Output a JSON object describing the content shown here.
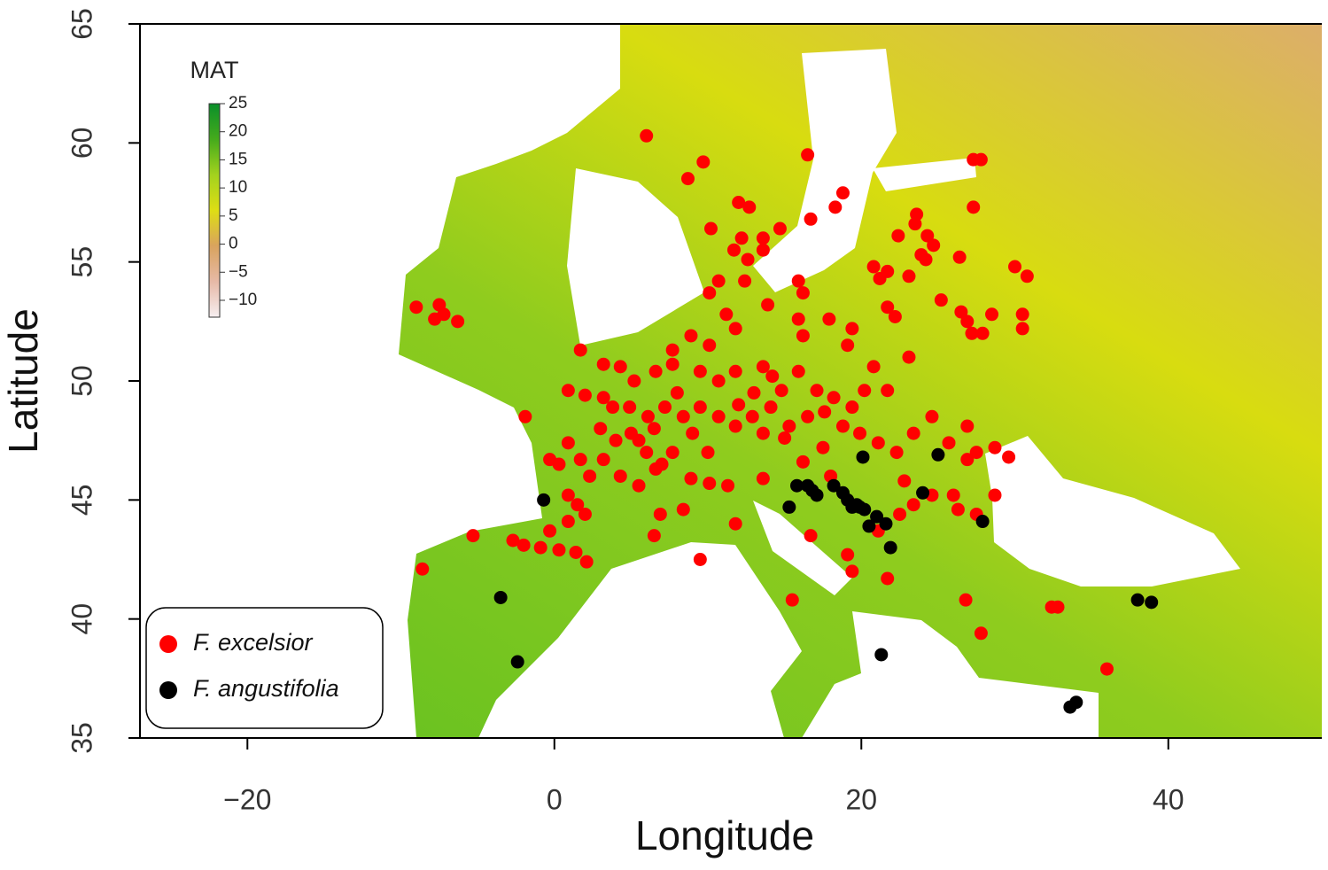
{
  "chart_data": {
    "type": "scatter",
    "x_label": "Longitude",
    "y_label": "Latitude",
    "xlim": [
      -27,
      50
    ],
    "ylim": [
      35,
      65
    ],
    "xticks": [
      {
        "value": -20,
        "label": "−20"
      },
      0,
      20,
      40
    ],
    "yticks": [
      35,
      40,
      45,
      50,
      55,
      60,
      65
    ],
    "colorbar": {
      "title": "MAT",
      "lim": [
        -13,
        25
      ],
      "ticks": [
        25,
        20,
        15,
        10,
        5,
        0,
        {
          "value": -5,
          "label": "−5"
        },
        {
          "value": -10,
          "label": "−10"
        }
      ],
      "colors": [
        "#f6eef0",
        "#e6b9a6",
        "#d9a35e",
        "#dede14",
        "#a3d21e",
        "#45ab1c",
        "#0a8f2a"
      ]
    },
    "legend": "bottom-left",
    "series": [
      {
        "name": "F. excelsior",
        "color": "#ff0000",
        "x": [
          -9.0,
          -7.5,
          -7.8,
          -7.2,
          -6.3,
          6.0,
          9.7,
          8.7,
          16.5,
          18.8,
          18.3,
          16.7,
          14.7,
          12.0,
          12.7,
          10.2,
          12.2,
          11.7,
          13.6,
          13.6,
          12.6,
          12.4,
          10.7,
          10.1,
          27.3,
          27.8,
          27.3,
          23.5,
          23.6,
          22.4,
          24.3,
          24.7,
          23.9,
          24.2,
          26.4,
          20.8,
          21.2,
          21.7,
          23.1,
          25.2,
          21.7,
          22.2,
          26.5,
          26.9,
          27.2,
          27.9,
          28.5,
          30.0,
          30.8,
          30.5,
          30.5,
          15.9,
          16.2,
          13.9,
          15.9,
          17.9,
          19.4,
          16.2,
          19.1,
          23.1,
          20.8,
          21.7,
          1.7,
          3.2,
          4.3,
          5.2,
          6.6,
          7.7,
          8.9,
          10.1,
          11.8,
          11.2,
          7.7,
          9.5,
          10.7,
          11.8,
          13.6,
          14.2,
          14.8,
          15.9,
          17.1,
          18.2,
          19.4,
          20.2,
          0.9,
          2.0,
          3.2,
          3.8,
          4.9,
          6.1,
          7.2,
          8.4,
          9.5,
          10.7,
          11.8,
          12.9,
          14.1,
          15.3,
          16.5,
          17.6,
          18.8,
          19.9,
          21.1,
          22.3,
          23.4,
          24.6,
          25.7,
          26.9,
          27.5,
          28.7,
          29.6,
          26.9,
          26.0,
          26.3,
          27.5,
          28.7,
          24.6,
          23.4,
          22.5,
          22.8,
          -1.9,
          -0.3,
          0.3,
          0.9,
          1.7,
          2.3,
          0.9,
          1.5,
          2.0,
          -0.3,
          0.9,
          3.2,
          4.3,
          5.5,
          6.6,
          7.7,
          8.9,
          10.1,
          11.3,
          6.9,
          8.4,
          6.5,
          -5.3,
          -2.7,
          -2.0,
          -0.9,
          0.3,
          1.4,
          2.1,
          -8.6,
          9.5,
          11.8,
          15.5,
          16.7,
          19.1,
          19.4,
          21.7,
          21.1,
          13.6,
          16.2,
          15.0,
          13.6,
          26.8,
          27.8,
          32.4,
          32.8,
          36.0,
          5.5,
          6.0,
          5.0,
          6.5,
          7.0,
          4.0,
          3.0,
          9.0,
          10.0,
          8.0,
          12.0,
          13.0,
          18.0,
          17.5
        ],
        "values": [
          53.1,
          53.2,
          52.6,
          52.8,
          52.5,
          60.3,
          59.2,
          58.5,
          59.5,
          57.9,
          57.3,
          56.8,
          56.4,
          57.5,
          57.3,
          56.4,
          56.0,
          55.5,
          56.0,
          55.5,
          55.1,
          54.2,
          54.2,
          53.7,
          59.3,
          59.3,
          57.3,
          56.6,
          57.0,
          56.1,
          56.1,
          55.7,
          55.3,
          55.1,
          55.2,
          54.8,
          54.3,
          54.6,
          54.4,
          53.4,
          53.1,
          52.7,
          52.9,
          52.5,
          52.0,
          52.0,
          52.8,
          54.8,
          54.4,
          52.8,
          52.2,
          54.2,
          53.7,
          53.2,
          52.6,
          52.6,
          52.2,
          51.9,
          51.5,
          51.0,
          50.6,
          49.6,
          51.3,
          50.7,
          50.6,
          50.0,
          50.4,
          51.3,
          51.9,
          51.5,
          52.2,
          52.8,
          50.7,
          50.4,
          50.0,
          50.4,
          50.6,
          50.2,
          49.6,
          50.4,
          49.6,
          49.3,
          48.9,
          49.6,
          49.6,
          49.4,
          49.3,
          48.9,
          48.9,
          48.5,
          48.9,
          48.5,
          48.9,
          48.5,
          48.1,
          48.5,
          48.9,
          48.1,
          48.5,
          48.7,
          48.1,
          47.8,
          47.4,
          47.0,
          47.8,
          48.5,
          47.4,
          48.1,
          47.0,
          47.2,
          46.8,
          46.7,
          45.2,
          44.6,
          44.4,
          45.2,
          45.2,
          44.8,
          44.4,
          45.8,
          48.5,
          46.7,
          46.5,
          47.4,
          46.7,
          46.0,
          45.2,
          44.8,
          44.4,
          43.7,
          44.1,
          46.7,
          46.0,
          45.6,
          46.3,
          47.0,
          45.9,
          45.7,
          45.6,
          44.4,
          44.6,
          43.5,
          43.5,
          43.3,
          43.1,
          43.0,
          42.9,
          42.8,
          42.4,
          42.1,
          42.5,
          44.0,
          40.8,
          43.5,
          42.7,
          42.0,
          41.7,
          43.7,
          45.9,
          46.6,
          47.6,
          47.8,
          40.8,
          39.4,
          40.5,
          40.5,
          37.9,
          47.5,
          47.0,
          47.8,
          48.0,
          46.5,
          47.5,
          48.0,
          47.8,
          47.0,
          49.5,
          49.0,
          49.5,
          46.0,
          47.2
        ]
      },
      {
        "name": "F. angustifolia",
        "color": "#000000",
        "x": [
          -0.7,
          -3.5,
          -2.4,
          15.3,
          15.8,
          16.5,
          16.8,
          17.1,
          18.2,
          18.8,
          19.1,
          19.4,
          19.7,
          19.9,
          20.2,
          20.5,
          21.0,
          21.6,
          21.9,
          20.1,
          25.0,
          24.0,
          27.9,
          21.3,
          38.0,
          38.9,
          33.6,
          34.0
        ],
        "values": [
          45.0,
          40.9,
          38.2,
          44.7,
          45.6,
          45.6,
          45.4,
          45.2,
          45.6,
          45.3,
          45.0,
          44.7,
          44.8,
          44.7,
          44.6,
          43.9,
          44.3,
          44.0,
          43.0,
          46.8,
          46.9,
          45.3,
          44.1,
          38.5,
          40.8,
          40.7,
          36.3,
          36.5
        ]
      }
    ]
  }
}
